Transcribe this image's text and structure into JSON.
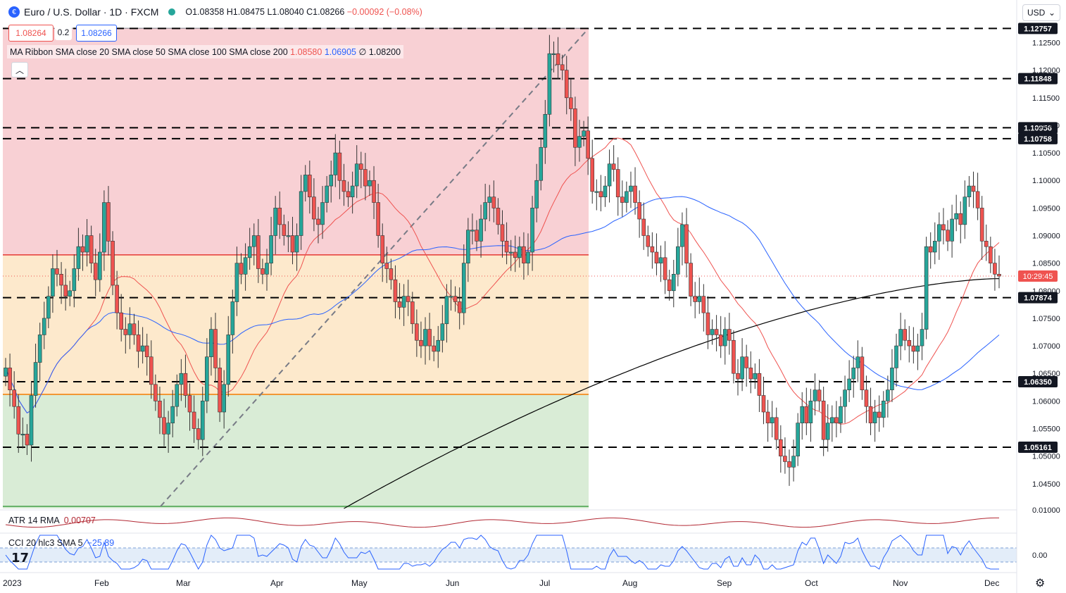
{
  "header": {
    "title": "Euro / U.S. Dollar · 1D · FXCM",
    "open": "O1.08358",
    "high": "H1.08475",
    "low": "L1.08040",
    "close": "C1.08266",
    "change": "−0.00092 (−0.08%)",
    "bid": "1.08264",
    "spread": "0.2",
    "ask": "1.08266"
  },
  "currency_selector": "USD",
  "ma_ribbon": {
    "label": "MA Ribbon SMA close 20 SMA close 50 SMA close 100 SMA close 200",
    "v1": "1.08580",
    "v2": "1.06905",
    "v3": "∅",
    "v4": "1.08200"
  },
  "atr": {
    "label": "ATR 14 RMA",
    "value": "0.00707"
  },
  "cci": {
    "label": "CCI 20 hlc3 SMA 5",
    "value": "−25.89"
  },
  "colors": {
    "up": "#26a69a",
    "down": "#ef5350",
    "sma20": "#ef5350",
    "sma50": "#2962ff",
    "sma200": "#000000",
    "zone_red": "#f8d0d4",
    "zone_orange": "#fde9cc",
    "zone_green": "#d9ecd6"
  },
  "chart_data": {
    "type": "candlestick",
    "y_range": [
      1.0405,
      1.1289
    ],
    "x_months": [
      "2023",
      "Feb",
      "Mar",
      "Apr",
      "May",
      "Jun",
      "Jul",
      "Aug",
      "Sep",
      "Oct",
      "Nov",
      "Dec"
    ],
    "y_ticks": [
      1.125,
      1.12,
      1.115,
      1.11,
      1.105,
      1.1,
      1.095,
      1.09,
      1.085,
      1.08,
      1.075,
      1.07,
      1.065,
      1.06,
      1.055,
      1.05,
      1.045
    ],
    "y_tick_labels": [
      "1.12500",
      "1.12000",
      "1.11500",
      "1.11000",
      "1.10500",
      "1.10000",
      "1.09500",
      "1.09000",
      "1.08500",
      "1.08000",
      "1.07500",
      "1.07000",
      "1.06500",
      "1.06000",
      "1.05500",
      "1.05000",
      "1.04500"
    ],
    "levels": [
      {
        "value": 1.12757,
        "label": "1.12757"
      },
      {
        "value": 1.11848,
        "label": "1.11848"
      },
      {
        "value": 1.10956,
        "label": "1.10956"
      },
      {
        "value": 1.10758,
        "label": "1.10758"
      },
      {
        "value": 1.07874,
        "label": "1.07874"
      },
      {
        "value": 1.0635,
        "label": "1.06350"
      },
      {
        "value": 1.05161,
        "label": "1.05161"
      }
    ],
    "fib_zone_lines": [
      1.1276,
      1.0865,
      1.0612,
      1.0405
    ],
    "current_price": 1.08266,
    "countdown": "10:29:45",
    "closes": [
      1.066,
      1.062,
      1.059,
      1.054,
      1.054,
      1.052,
      1.061,
      1.067,
      1.072,
      1.075,
      1.079,
      1.084,
      1.083,
      1.081,
      1.079,
      1.08,
      1.084,
      1.088,
      1.087,
      1.09,
      1.085,
      1.082,
      1.087,
      1.096,
      1.089,
      1.081,
      1.076,
      1.073,
      1.072,
      1.074,
      1.072,
      1.069,
      1.07,
      1.068,
      1.063,
      1.06,
      1.057,
      1.054,
      1.056,
      1.059,
      1.063,
      1.065,
      1.061,
      1.058,
      1.055,
      1.053,
      1.06,
      1.068,
      1.073,
      1.066,
      1.058,
      1.063,
      1.072,
      1.078,
      1.085,
      1.083,
      1.086,
      1.088,
      1.09,
      1.084,
      1.083,
      1.085,
      1.09,
      1.095,
      1.092,
      1.09,
      1.09,
      1.087,
      1.09,
      1.098,
      1.101,
      1.097,
      1.093,
      1.092,
      1.096,
      1.099,
      1.101,
      1.105,
      1.1,
      1.098,
      1.097,
      1.099,
      1.103,
      1.102,
      1.099,
      1.1,
      1.096,
      1.09,
      1.085,
      1.084,
      1.082,
      1.078,
      1.077,
      1.079,
      1.078,
      1.074,
      1.071,
      1.07,
      1.073,
      1.07,
      1.069,
      1.071,
      1.074,
      1.079,
      1.079,
      1.078,
      1.076,
      1.085,
      1.091,
      1.091,
      1.089,
      1.093,
      1.096,
      1.097,
      1.095,
      1.092,
      1.089,
      1.087,
      1.087,
      1.086,
      1.088,
      1.085,
      1.087,
      1.095,
      1.1,
      1.106,
      1.112,
      1.123,
      1.123,
      1.121,
      1.12,
      1.115,
      1.113,
      1.106,
      1.108,
      1.109,
      1.104,
      1.098,
      1.098,
      1.097,
      1.099,
      1.103,
      1.102,
      1.097,
      1.096,
      1.098,
      1.099,
      1.096,
      1.093,
      1.09,
      1.088,
      1.087,
      1.085,
      1.086,
      1.082,
      1.08,
      1.083,
      1.088,
      1.092,
      1.085,
      1.079,
      1.078,
      1.079,
      1.076,
      1.072,
      1.073,
      1.072,
      1.07,
      1.073,
      1.071,
      1.065,
      1.064,
      1.068,
      1.066,
      1.064,
      1.065,
      1.061,
      1.058,
      1.056,
      1.057,
      1.053,
      1.05,
      1.049,
      1.048,
      1.05,
      1.056,
      1.059,
      1.056,
      1.06,
      1.062,
      1.06,
      1.053,
      1.056,
      1.057,
      1.056,
      1.059,
      1.062,
      1.064,
      1.066,
      1.068,
      1.062,
      1.059,
      1.056,
      1.058,
      1.057,
      1.06,
      1.062,
      1.066,
      1.07,
      1.073,
      1.071,
      1.07,
      1.069,
      1.07,
      1.073,
      1.088,
      1.087,
      1.089,
      1.092,
      1.091,
      1.089,
      1.093,
      1.094,
      1.092,
      1.097,
      1.099,
      1.098,
      1.095,
      1.089,
      1.088,
      1.085,
      1.083,
      1.08266
    ]
  }
}
